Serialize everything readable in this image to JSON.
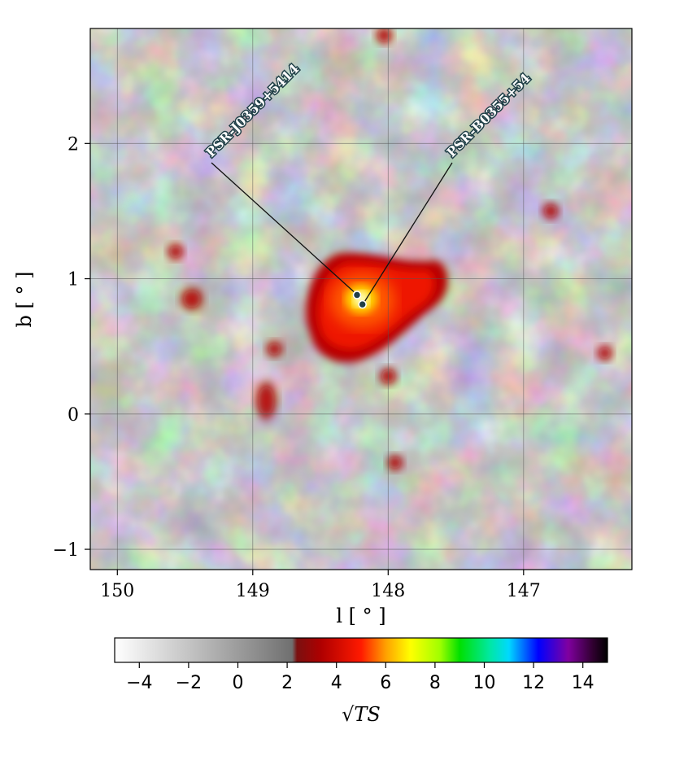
{
  "chart_data": {
    "type": "heatmap",
    "title": "",
    "xlabel": "l [ ° ]",
    "ylabel": "b [ ° ]",
    "xlim": [
      150.2,
      146.2
    ],
    "ylim": [
      -1.15,
      2.85
    ],
    "x_inverted": true,
    "xticks": [
      150,
      149,
      148,
      147
    ],
    "xtick_labels": [
      "150",
      "149",
      "148",
      "147"
    ],
    "yticks": [
      -1,
      0,
      1,
      2
    ],
    "ytick_labels": [
      "−1",
      "0",
      "1",
      "2"
    ],
    "grid": true,
    "colorbar": {
      "label": "√TS",
      "range": [
        -5,
        15
      ],
      "ticks": [
        -4,
        -2,
        0,
        2,
        4,
        6,
        8,
        10,
        12,
        14
      ],
      "tick_labels": [
        "−4",
        "−2",
        "0",
        "2",
        "4",
        "6",
        "8",
        "10",
        "12",
        "14"
      ],
      "orientation": "horizontal",
      "placement": "bottom",
      "colors": {
        "low": "#ffffff",
        "mid_gray": "#7a7a7a",
        "dark_red": "#8b0000",
        "red": "#ff1a00",
        "yellow": "#ffff00",
        "green": "#00e000",
        "cyan": "#00e0ff",
        "blue": "#0000ff",
        "purple": "#8000a0",
        "high": "#000000"
      }
    },
    "sources": [
      {
        "name": "PSR-J0359+5414",
        "l": 148.23,
        "b": 0.88
      },
      {
        "name": "PSR-B0355+54",
        "l": 148.19,
        "b": 0.81
      }
    ],
    "hotspots": [
      {
        "l": 148.2,
        "b": 0.85,
        "peak_sqrt_ts": 6.5
      },
      {
        "l": 149.45,
        "b": 0.85,
        "peak_sqrt_ts": 3.3
      },
      {
        "l": 148.9,
        "b": 0.1,
        "peak_sqrt_ts": 3.1
      },
      {
        "l": 148.0,
        "b": 0.28,
        "peak_sqrt_ts": 2.7
      },
      {
        "l": 146.8,
        "b": 1.5,
        "peak_sqrt_ts": 2.6
      },
      {
        "l": 148.03,
        "b": 2.8,
        "peak_sqrt_ts": 2.6
      },
      {
        "l": 147.95,
        "b": -0.36,
        "peak_sqrt_ts": 2.5
      },
      {
        "l": 146.4,
        "b": 0.45,
        "peak_sqrt_ts": 2.4
      },
      {
        "l": 149.57,
        "b": 1.2,
        "peak_sqrt_ts": 2.5
      },
      {
        "l": 148.84,
        "b": 0.48,
        "peak_sqrt_ts": 2.5
      }
    ]
  }
}
